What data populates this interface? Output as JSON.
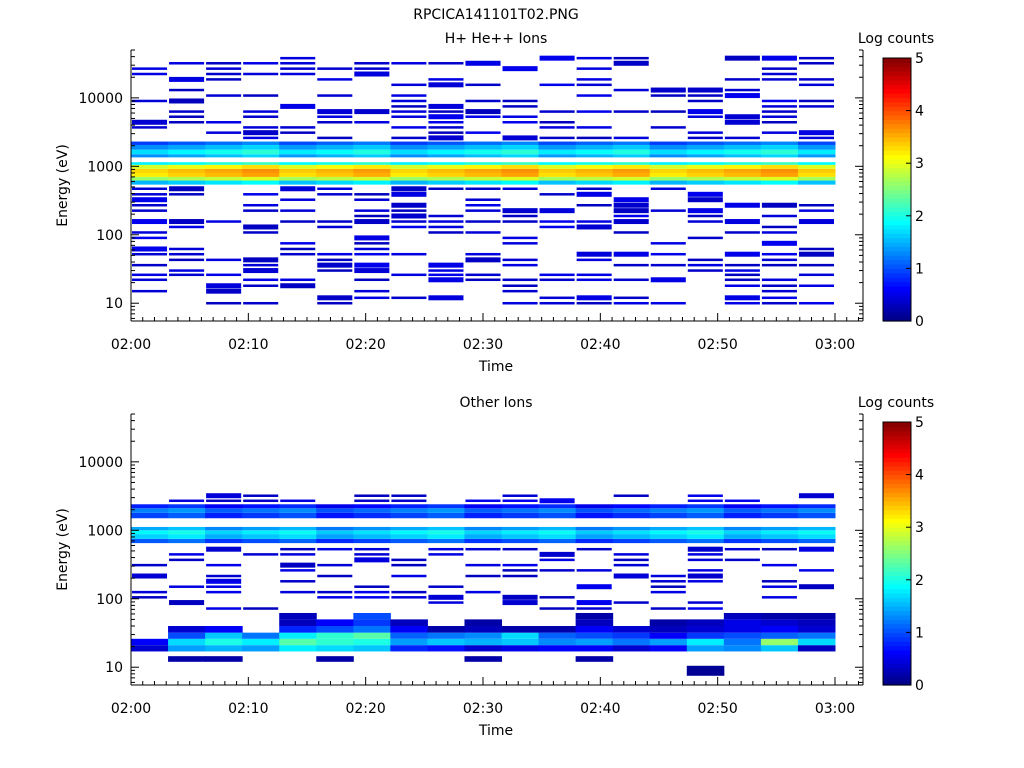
{
  "figure": {
    "title": "RPCICA141101T02.PNG"
  },
  "colorscale": {
    "label": "Log counts",
    "ticks": [
      "0",
      "1",
      "2",
      "3",
      "4",
      "5"
    ],
    "range": [
      0,
      5
    ]
  },
  "chart_data": [
    {
      "type": "heatmap",
      "title": "H+ He++ Ions",
      "xlabel": "Time",
      "ylabel": "Energy (eV)",
      "x_ticks": [
        "02:00",
        "02:10",
        "02:20",
        "02:30",
        "02:40",
        "02:50",
        "03:00"
      ],
      "x_range_minutes": [
        0,
        63
      ],
      "y_ticks": [
        "10",
        "100",
        "1000",
        "10000"
      ],
      "y_scale": "log",
      "y_range": [
        5.5,
        50000
      ],
      "z_range": [
        0,
        5
      ],
      "time_bins": 19,
      "core_bands": [
        {
          "e_lo": 540,
          "e_hi": 620,
          "value": 1.7
        },
        {
          "e_lo": 620,
          "e_hi": 700,
          "value": 2.8
        },
        {
          "e_lo": 700,
          "e_hi": 800,
          "value": 3.4
        },
        {
          "e_lo": 800,
          "e_hi": 920,
          "value": 3.5
        },
        {
          "e_lo": 920,
          "e_hi": 1050,
          "value": 3.1
        },
        {
          "e_lo": 1050,
          "e_hi": 1150,
          "value": 2.0
        },
        {
          "e_lo": 1350,
          "e_hi": 1500,
          "value": 1.5
        },
        {
          "e_lo": 1500,
          "e_hi": 1750,
          "value": 1.9
        },
        {
          "e_lo": 1750,
          "e_hi": 2050,
          "value": 1.5
        },
        {
          "e_lo": 2050,
          "e_hi": 2300,
          "value": 1.1
        }
      ],
      "sparse_energies_eV": [
        10,
        12,
        15,
        18,
        22,
        26,
        30,
        36,
        43,
        52,
        62,
        75,
        90,
        108,
        130,
        156,
        188,
        225,
        270,
        325,
        390,
        470,
        2600,
        3100,
        3700,
        4400,
        5300,
        6300,
        7500,
        9000,
        10800,
        13000,
        15500,
        18600,
        22300,
        26700,
        32000,
        38000
      ],
      "sparse_value": 0.3
    },
    {
      "type": "heatmap",
      "title": "Other Ions",
      "xlabel": "Time",
      "ylabel": "Energy (eV)",
      "x_ticks": [
        "02:00",
        "02:10",
        "02:20",
        "02:30",
        "02:40",
        "02:50",
        "03:00"
      ],
      "x_range_minutes": [
        0,
        63
      ],
      "y_ticks": [
        "10",
        "100",
        "1000",
        "10000"
      ],
      "y_scale": "log",
      "y_range": [
        5.5,
        50000
      ],
      "z_range": [
        0,
        5
      ],
      "time_bins": 19,
      "core_bands": [
        {
          "e_lo": 650,
          "e_hi": 750,
          "value": 1.0
        },
        {
          "e_lo": 750,
          "e_hi": 880,
          "value": 1.6
        },
        {
          "e_lo": 880,
          "e_hi": 1000,
          "value": 1.8
        },
        {
          "e_lo": 1000,
          "e_hi": 1120,
          "value": 1.4
        },
        {
          "e_lo": 1500,
          "e_hi": 1800,
          "value": 0.9
        },
        {
          "e_lo": 1800,
          "e_hi": 2100,
          "value": 1.2
        },
        {
          "e_lo": 2100,
          "e_hi": 2400,
          "value": 0.7
        }
      ],
      "low_energy_bands": [
        {
          "e_lo": 17,
          "e_hi": 21,
          "values": [
            0.4,
            1.4,
            1.5,
            1.4,
            1.8,
            1.7,
            1.6,
            0.8,
            0.7,
            0.4,
            0.5,
            0.6,
            0.6,
            0.4,
            0.6,
            1.4,
            1.3,
            1.6,
            0.3
          ]
        },
        {
          "e_lo": 21,
          "e_hi": 26,
          "values": [
            0.6,
            1.7,
            2.0,
            1.8,
            2.3,
            2.1,
            2.0,
            1.4,
            1.6,
            1.5,
            1.6,
            1.3,
            1.4,
            1.2,
            1.4,
            1.8,
            1.2,
            2.6,
            1.7
          ]
        },
        {
          "e_lo": 26,
          "e_hi": 32,
          "values": [
            0.0,
            1.0,
            1.6,
            1.2,
            1.8,
            2.1,
            2.3,
            1.1,
            1.2,
            1.3,
            1.7,
            1.1,
            1.0,
            0.9,
            0.6,
            0.9,
            1.0,
            1.1,
            1.2
          ]
        },
        {
          "e_lo": 32,
          "e_hi": 40,
          "values": [
            0.0,
            0.4,
            0.6,
            0.0,
            0.8,
            1.0,
            1.2,
            0.6,
            0.2,
            0.3,
            0.2,
            0.2,
            0.6,
            0.4,
            0.3,
            0.4,
            0.5,
            0.6,
            0.4
          ]
        },
        {
          "e_lo": 40,
          "e_hi": 50,
          "values": [
            0.0,
            0.0,
            0.0,
            0.0,
            0.3,
            0.6,
            0.9,
            0.3,
            0.0,
            0.2,
            0.0,
            0.0,
            0.3,
            0.0,
            0.2,
            0.3,
            0.5,
            0.4,
            0.3
          ]
        },
        {
          "e_lo": 50,
          "e_hi": 62,
          "values": [
            0.0,
            0.0,
            0.0,
            0.0,
            0.3,
            0.0,
            1.0,
            0.0,
            0.0,
            0.0,
            0.0,
            0.0,
            0.2,
            0.0,
            0.0,
            0.0,
            0.3,
            0.2,
            0.2
          ]
        },
        {
          "e_lo": 12,
          "e_hi": 14.5,
          "values": [
            0.0,
            0.2,
            0.2,
            0.0,
            0.0,
            0.2,
            0.0,
            0.0,
            0.0,
            0.2,
            0.0,
            0.0,
            0.2,
            0.0,
            0.0,
            0.0,
            0.0,
            0.0,
            0.0
          ]
        },
        {
          "e_lo": 7.5,
          "e_hi": 10.5,
          "values": [
            0.0,
            0.0,
            0.0,
            0.0,
            0.0,
            0.0,
            0.0,
            0.0,
            0.0,
            0.0,
            0.0,
            0.0,
            0.0,
            0.0,
            0.0,
            0.1,
            0.0,
            0.0,
            0.0
          ]
        }
      ],
      "sparse_energies_eV": [
        72,
        88,
        105,
        125,
        150,
        180,
        215,
        260,
        310,
        370,
        445,
        530,
        2700,
        3200
      ],
      "sparse_value": 0.3
    }
  ]
}
